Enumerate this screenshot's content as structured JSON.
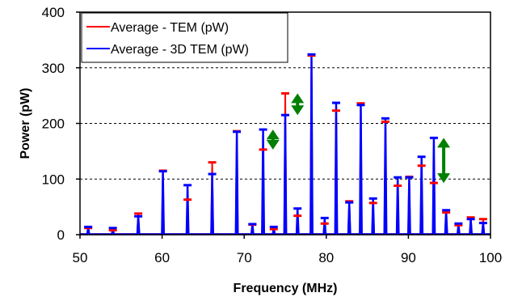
{
  "chart_data": {
    "type": "line",
    "xlabel": "Frequency (MHz)",
    "ylabel": "Power (pW)",
    "xlim": [
      50,
      100
    ],
    "ylim": [
      0,
      400
    ],
    "xticks": [
      50,
      60,
      70,
      80,
      90,
      100
    ],
    "yticks": [
      0,
      100,
      200,
      300,
      400
    ],
    "grid": "horizontal dashed",
    "legend": {
      "placement": "top-left"
    },
    "series": [
      {
        "name": "Average - TEM (pW)",
        "color": "#ff0000",
        "peaks": [
          [
            51.0,
            12
          ],
          [
            54.0,
            8
          ],
          [
            57.1,
            38
          ],
          [
            60.1,
            115
          ],
          [
            63.1,
            63
          ],
          [
            66.1,
            130
          ],
          [
            69.1,
            186
          ],
          [
            71.0,
            18
          ],
          [
            72.3,
            153
          ],
          [
            73.6,
            10
          ],
          [
            75.0,
            254
          ],
          [
            76.5,
            34
          ],
          [
            78.2,
            322
          ],
          [
            79.8,
            20
          ],
          [
            81.2,
            223
          ],
          [
            82.8,
            60
          ],
          [
            84.2,
            236
          ],
          [
            85.7,
            57
          ],
          [
            87.2,
            203
          ],
          [
            88.7,
            88
          ],
          [
            90.1,
            104
          ],
          [
            91.6,
            124
          ],
          [
            93.1,
            93
          ],
          [
            94.6,
            40
          ],
          [
            96.1,
            17
          ],
          [
            97.6,
            31
          ],
          [
            99.1,
            28
          ]
        ]
      },
      {
        "name": "Average - 3D TEM (pW)",
        "color": "#0000ff",
        "peaks": [
          [
            51.0,
            14
          ],
          [
            54.0,
            12
          ],
          [
            57.1,
            33
          ],
          [
            60.1,
            114
          ],
          [
            63.1,
            89
          ],
          [
            66.1,
            109
          ],
          [
            69.1,
            185
          ],
          [
            71.0,
            19
          ],
          [
            72.3,
            189
          ],
          [
            73.6,
            14
          ],
          [
            75.0,
            215
          ],
          [
            76.5,
            47
          ],
          [
            78.2,
            324
          ],
          [
            79.8,
            30
          ],
          [
            81.2,
            237
          ],
          [
            82.8,
            58
          ],
          [
            84.2,
            233
          ],
          [
            85.7,
            65
          ],
          [
            87.2,
            209
          ],
          [
            88.7,
            103
          ],
          [
            90.1,
            103
          ],
          [
            91.6,
            140
          ],
          [
            93.1,
            174
          ],
          [
            94.6,
            44
          ],
          [
            96.1,
            20
          ],
          [
            97.6,
            28
          ],
          [
            99.1,
            21
          ]
        ]
      }
    ],
    "annotations": [
      {
        "type": "double-arrow",
        "x": 73.5,
        "y_from": 153,
        "y_to": 189,
        "color": "#008000"
      },
      {
        "type": "double-arrow",
        "x": 76.5,
        "y_from": 215,
        "y_to": 254,
        "color": "#008000"
      },
      {
        "type": "double-arrow",
        "x": 94.3,
        "y_from": 93,
        "y_to": 174,
        "color": "#008000"
      }
    ]
  }
}
